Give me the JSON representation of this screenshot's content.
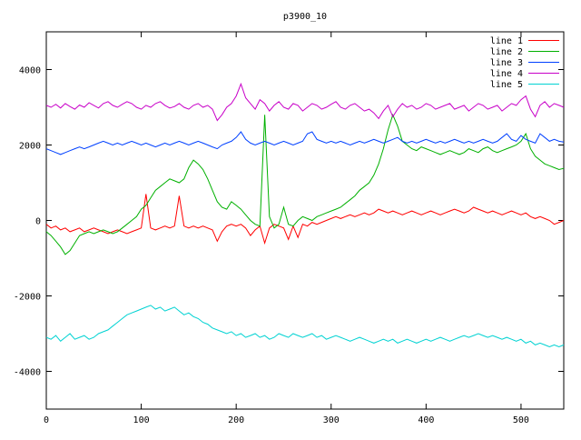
{
  "window": {
    "background": "#ffffff",
    "border_color": "#000000",
    "tick_color": "#000000",
    "text_color": "#000000"
  },
  "chart_data": {
    "type": "line",
    "title": "p3900_10",
    "xlabel": "",
    "ylabel": "",
    "xlim": [
      0,
      545
    ],
    "ylim": [
      -5000,
      5000
    ],
    "x_ticks": [
      0,
      100,
      200,
      300,
      400,
      500
    ],
    "y_ticks": [
      -4000,
      -2000,
      0,
      2000,
      4000
    ],
    "grid": false,
    "legend_position": "top-right",
    "series": [
      {
        "name": "line 1",
        "color": "#ff0000",
        "x_start": 0,
        "x_step": 5,
        "values": [
          -100,
          -200,
          -150,
          -250,
          -200,
          -300,
          -250,
          -200,
          -300,
          -250,
          -200,
          -250,
          -300,
          -350,
          -300,
          -250,
          -300,
          -350,
          -300,
          -250,
          -200,
          700,
          -200,
          -250,
          -200,
          -150,
          -200,
          -150,
          650,
          -150,
          -200,
          -150,
          -200,
          -150,
          -200,
          -250,
          -550,
          -300,
          -150,
          -100,
          -150,
          -100,
          -200,
          -400,
          -250,
          -150,
          -600,
          -200,
          -100,
          -150,
          -200,
          -500,
          -150,
          -450,
          -100,
          -150,
          -50,
          -100,
          -50,
          0,
          50,
          100,
          50,
          100,
          150,
          100,
          150,
          200,
          150,
          200,
          300,
          250,
          200,
          250,
          200,
          150,
          200,
          250,
          200,
          150,
          200,
          250,
          200,
          150,
          200,
          250,
          300,
          250,
          200,
          250,
          350,
          300,
          250,
          200,
          250,
          200,
          150,
          200,
          250,
          200,
          150,
          200,
          100,
          50,
          100,
          50,
          0,
          -100,
          -50,
          0
        ]
      },
      {
        "name": "line 2",
        "color": "#00b000",
        "x_start": 0,
        "x_step": 5,
        "values": [
          -300,
          -400,
          -550,
          -700,
          -900,
          -800,
          -600,
          -400,
          -350,
          -300,
          -350,
          -300,
          -250,
          -300,
          -350,
          -300,
          -200,
          -100,
          0,
          100,
          300,
          400,
          600,
          800,
          900,
          1000,
          1100,
          1050,
          1000,
          1100,
          1400,
          1600,
          1500,
          1350,
          1100,
          800,
          500,
          350,
          300,
          500,
          400,
          300,
          150,
          0,
          -100,
          -150,
          2800,
          100,
          -200,
          -100,
          350,
          -100,
          -150,
          0,
          100,
          50,
          0,
          100,
          150,
          200,
          250,
          300,
          350,
          450,
          550,
          650,
          800,
          900,
          1000,
          1200,
          1500,
          1900,
          2400,
          2800,
          2500,
          2100,
          2000,
          1900,
          1850,
          1950,
          1900,
          1850,
          1800,
          1750,
          1800,
          1850,
          1800,
          1750,
          1800,
          1900,
          1850,
          1800,
          1900,
          1950,
          1850,
          1800,
          1850,
          1900,
          1950,
          2000,
          2100,
          2300,
          1900,
          1700,
          1600,
          1500,
          1450,
          1400,
          1350,
          1380
        ]
      },
      {
        "name": "line 3",
        "color": "#0040ff",
        "x_start": 0,
        "x_step": 5,
        "values": [
          1900,
          1850,
          1800,
          1750,
          1800,
          1850,
          1900,
          1950,
          1900,
          1950,
          2000,
          2050,
          2100,
          2050,
          2000,
          2050,
          2000,
          2050,
          2100,
          2050,
          2000,
          2050,
          2000,
          1950,
          2000,
          2050,
          2000,
          2050,
          2100,
          2050,
          2000,
          2050,
          2100,
          2050,
          2000,
          1950,
          1900,
          2000,
          2050,
          2100,
          2200,
          2350,
          2150,
          2050,
          2000,
          2050,
          2100,
          2050,
          2000,
          2050,
          2100,
          2050,
          2000,
          2050,
          2100,
          2300,
          2350,
          2150,
          2100,
          2050,
          2100,
          2050,
          2100,
          2050,
          2000,
          2050,
          2100,
          2050,
          2100,
          2150,
          2100,
          2050,
          2100,
          2150,
          2200,
          2100,
          2050,
          2100,
          2050,
          2100,
          2150,
          2100,
          2050,
          2100,
          2050,
          2100,
          2150,
          2100,
          2050,
          2100,
          2050,
          2100,
          2150,
          2100,
          2050,
          2100,
          2200,
          2300,
          2150,
          2100,
          2250,
          2150,
          2100,
          2050,
          2300,
          2200,
          2100,
          2150,
          2100,
          2080
        ]
      },
      {
        "name": "line 4",
        "color": "#c800c8",
        "x_start": 0,
        "x_step": 5,
        "values": [
          3050,
          3000,
          3080,
          2980,
          3100,
          3020,
          2950,
          3060,
          3000,
          3120,
          3050,
          2980,
          3100,
          3150,
          3050,
          3000,
          3080,
          3150,
          3100,
          3000,
          2950,
          3050,
          3000,
          3100,
          3150,
          3050,
          2980,
          3020,
          3100,
          3000,
          2950,
          3050,
          3100,
          3000,
          3050,
          2950,
          2650,
          2800,
          3000,
          3100,
          3300,
          3620,
          3250,
          3100,
          2950,
          3200,
          3100,
          2900,
          3050,
          3150,
          3000,
          2950,
          3100,
          3050,
          2900,
          3000,
          3100,
          3050,
          2950,
          3000,
          3080,
          3150,
          3000,
          2950,
          3050,
          3100,
          3000,
          2900,
          2950,
          2850,
          2700,
          2900,
          3050,
          2750,
          2950,
          3100,
          3000,
          3050,
          2950,
          3000,
          3100,
          3050,
          2950,
          3000,
          3050,
          3100,
          2950,
          3000,
          3050,
          2900,
          3000,
          3100,
          3050,
          2950,
          3000,
          3050,
          2900,
          3000,
          3100,
          3050,
          3200,
          3300,
          2950,
          2750,
          3050,
          3150,
          3000,
          3100,
          3050,
          3000
        ]
      },
      {
        "name": "line 5",
        "color": "#00d2d2",
        "x_start": 0,
        "x_step": 5,
        "values": [
          -3100,
          -3150,
          -3050,
          -3200,
          -3100,
          -3000,
          -3150,
          -3100,
          -3050,
          -3150,
          -3100,
          -3000,
          -2950,
          -2900,
          -2800,
          -2700,
          -2600,
          -2500,
          -2450,
          -2400,
          -2350,
          -2300,
          -2250,
          -2350,
          -2300,
          -2400,
          -2350,
          -2300,
          -2400,
          -2500,
          -2450,
          -2550,
          -2600,
          -2700,
          -2750,
          -2850,
          -2900,
          -2950,
          -3000,
          -2950,
          -3050,
          -3000,
          -3100,
          -3050,
          -3000,
          -3100,
          -3050,
          -3150,
          -3100,
          -3000,
          -3050,
          -3100,
          -3000,
          -3050,
          -3100,
          -3050,
          -3000,
          -3100,
          -3050,
          -3150,
          -3100,
          -3050,
          -3100,
          -3150,
          -3200,
          -3150,
          -3100,
          -3150,
          -3200,
          -3250,
          -3200,
          -3150,
          -3200,
          -3150,
          -3250,
          -3200,
          -3150,
          -3200,
          -3250,
          -3200,
          -3150,
          -3200,
          -3150,
          -3100,
          -3150,
          -3200,
          -3150,
          -3100,
          -3050,
          -3100,
          -3050,
          -3000,
          -3050,
          -3100,
          -3050,
          -3100,
          -3150,
          -3100,
          -3150,
          -3200,
          -3150,
          -3250,
          -3200,
          -3300,
          -3250,
          -3300,
          -3350,
          -3300,
          -3350,
          -3300
        ]
      }
    ]
  },
  "legend": {
    "entries": [
      {
        "label": "line 1",
        "color": "#ff0000"
      },
      {
        "label": "line 2",
        "color": "#00b000"
      },
      {
        "label": "line 3",
        "color": "#0040ff"
      },
      {
        "label": "line 4",
        "color": "#c800c8"
      },
      {
        "label": "line 5",
        "color": "#00d2d2"
      }
    ]
  }
}
